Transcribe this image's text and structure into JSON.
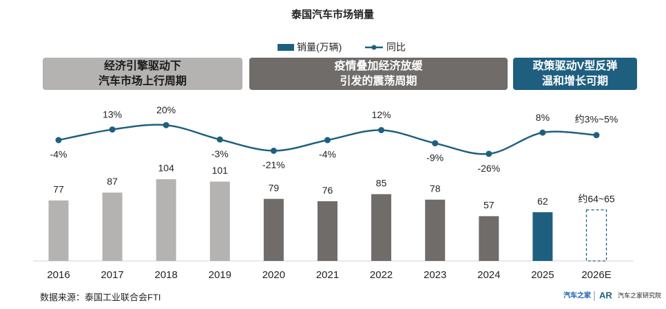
{
  "chart_data": {
    "type": "bar",
    "title": "泰国汽车市场销量",
    "categories": [
      "2016",
      "2017",
      "2018",
      "2019",
      "2020",
      "2021",
      "2022",
      "2023",
      "2024",
      "2025",
      "2026E"
    ],
    "series": [
      {
        "name": "销量(万辆)",
        "type": "bar",
        "values": [
          77,
          87,
          104,
          101,
          79,
          76,
          85,
          78,
          57,
          62,
          null
        ],
        "colors": [
          "#b5b3b1",
          "#b5b3b1",
          "#b5b3b1",
          "#b5b3b1",
          "#6f6c6a",
          "#6f6c6a",
          "#6f6c6a",
          "#6f6c6a",
          "#6f6c6a",
          "#1e5f80",
          "#1e5f80"
        ]
      },
      {
        "name": "同比",
        "type": "line",
        "color": "#1e5f80",
        "values": [
          -4,
          13,
          20,
          -3,
          -21,
          -4,
          12,
          -9,
          -26,
          8,
          null
        ],
        "value_labels": [
          "-4%",
          "13%",
          "20%",
          "-3%",
          "-21%",
          "-4%",
          "12%",
          "-9%",
          "-26%",
          "8%",
          null
        ]
      }
    ],
    "estimates": {
      "sales": {
        "low": 64,
        "high": 65,
        "label": "约64~65"
      },
      "yoy": {
        "low": 3,
        "high": 5,
        "label": "约3%~5%"
      }
    },
    "phases": [
      {
        "lines": [
          "经济引擎驱动下",
          "汽车市场上行周期"
        ],
        "color": "#b5b3b1",
        "text_color": "#1a1a1a"
      },
      {
        "lines": [
          "疫情叠加经济放缓",
          "引发的震荡周期"
        ],
        "color": "#6f6c6a",
        "text_color": "#ffffff"
      },
      {
        "lines": [
          "政策驱动V型反弹",
          "温和增长可期"
        ],
        "color": "#1e5f80",
        "text_color": "#ffffff"
      }
    ]
  },
  "footer": {
    "source": "数据来源：泰国工业联合会FTI",
    "logo": [
      "汽车之家",
      "汽车之家研究院"
    ]
  }
}
